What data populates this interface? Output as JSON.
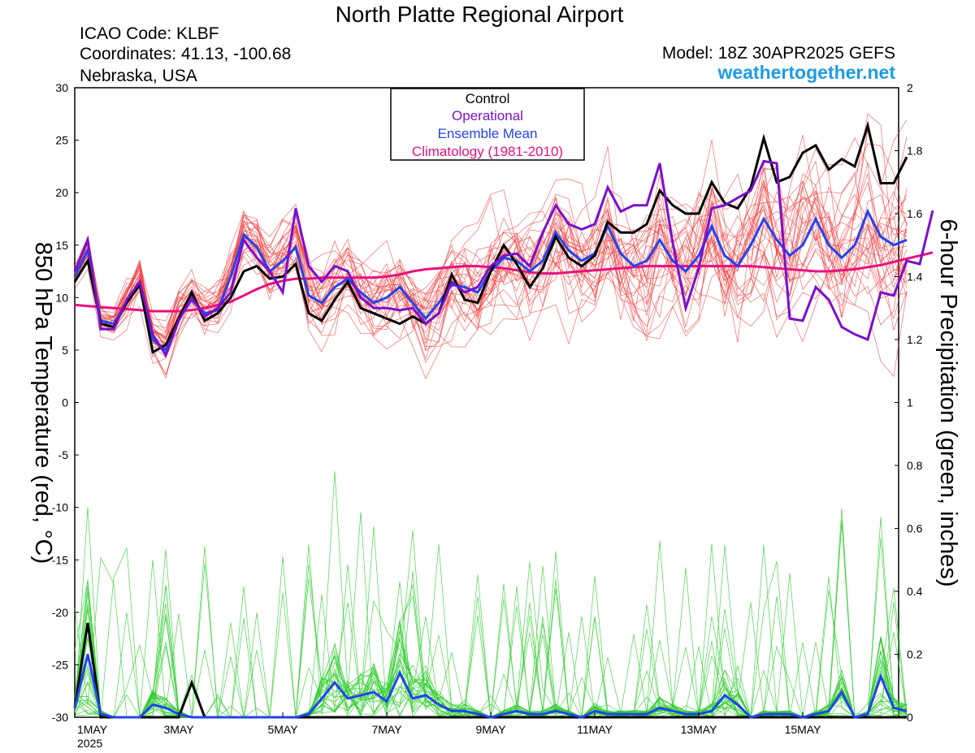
{
  "header": {
    "title": "North Platte Regional Airport",
    "icao": "ICAO Code: KLBF",
    "coordinates": "Coordinates: 41.13, -100.68",
    "region": "Nebraska, USA",
    "model": "Model: 18Z 30APR2025 GEFS",
    "brand": "weathertogether.net"
  },
  "colors": {
    "member_temp": "#f03c3c",
    "member_precip": "#2ecc2e",
    "control": "#000000",
    "operational": "#7a10cc",
    "mean": "#2244ee",
    "climatology": "#e8107f"
  },
  "chart_data": {
    "type": "line",
    "x_unit": "days since 1MAY 2025 00Z",
    "x_ticks": [
      {
        "x": 0,
        "label": "1MAY",
        "sub": "2025"
      },
      {
        "x": 2,
        "label": "3MAY"
      },
      {
        "x": 4,
        "label": "5MAY"
      },
      {
        "x": 6,
        "label": "7MAY"
      },
      {
        "x": 8,
        "label": "9MAY"
      },
      {
        "x": 10,
        "label": "11MAY"
      },
      {
        "x": 12,
        "label": "13MAY"
      },
      {
        "x": 14,
        "label": "15MAY"
      }
    ],
    "xlim": [
      0,
      15.75
    ],
    "y_left": {
      "label": "850 hPa Temperature (red, °C)",
      "ylim": [
        -30,
        30
      ],
      "ticks": [
        30,
        25,
        20,
        15,
        10,
        5,
        0,
        -5,
        -10,
        -15,
        -20,
        -25,
        -30
      ]
    },
    "y_right": {
      "label": "6-hour Precipitation (green, inches)",
      "ylim": [
        0,
        2
      ],
      "ticks": [
        "2",
        "1.8",
        "1.6",
        "1.4",
        "1.2",
        "1",
        "0.8",
        "0.6",
        "0.4",
        "0.2",
        "0"
      ]
    },
    "legend": {
      "position": "top-center",
      "entries": [
        {
          "name": "Control",
          "color": "#000000"
        },
        {
          "name": "Operational",
          "color": "#7a10cc"
        },
        {
          "name": "Ensemble Mean",
          "color": "#2244ee"
        },
        {
          "name": "Climatology (1981-2010)",
          "color": "#e8107f"
        }
      ]
    },
    "step_days": 0.25,
    "temperature": {
      "control": [
        11.5,
        13.5,
        7.5,
        7.2,
        9.5,
        11.2,
        4.8,
        5.5,
        8,
        10.5,
        7.8,
        8.5,
        10,
        12.5,
        13,
        11.8,
        12,
        13.2,
        8.5,
        7.8,
        9.8,
        11.5,
        9,
        8.5,
        8,
        7.5,
        8.2,
        7.5,
        8.5,
        12.2,
        9.8,
        9.5,
        12.5,
        15,
        13.2,
        11,
        12.8,
        15.8,
        13.8,
        13,
        14,
        17.2,
        16.2,
        16.2,
        17,
        20.2,
        18.8,
        18,
        18,
        21,
        19,
        18.5,
        20.5,
        25.2,
        21,
        21.5,
        23.8,
        24.5,
        22.2,
        23.2,
        22.5,
        26.4,
        20.9,
        20.9,
        23.4
      ],
      "operational": [
        12.5,
        15.5,
        7,
        7,
        9.8,
        11.5,
        6.5,
        4.5,
        7.8,
        10,
        8.2,
        9,
        10.5,
        15.5,
        13.8,
        12.5,
        10.5,
        18.5,
        13,
        11.5,
        13,
        12.5,
        10,
        9,
        9,
        8.8,
        9,
        7.5,
        8.5,
        11.5,
        10.5,
        11,
        13,
        14,
        14.2,
        13,
        16.2,
        18.8,
        17,
        16.5,
        17,
        20.5,
        18.2,
        18.8,
        18.8,
        22.8,
        15.2,
        9,
        12.8,
        18.5,
        18.8,
        19.5,
        20.2,
        23,
        22.8,
        8,
        7.8,
        11,
        9.8,
        7.2,
        6.5,
        6,
        10.5,
        10.2,
        13.5,
        13.2,
        18.3
      ],
      "mean": [
        12,
        14.5,
        7.8,
        7.5,
        9.5,
        11.5,
        6,
        5,
        8,
        9.8,
        8.5,
        8.8,
        12,
        16,
        14.8,
        12.5,
        13.5,
        14.8,
        10.2,
        9.5,
        11,
        11.8,
        10.5,
        9.5,
        10,
        11,
        9.5,
        8,
        9.5,
        11.2,
        11,
        10.5,
        12.5,
        13.8,
        13.5,
        12.5,
        13.5,
        16.2,
        14.5,
        13.5,
        14.2,
        16.8,
        14.2,
        13,
        13.5,
        15.5,
        13.5,
        12.5,
        14,
        16.8,
        14,
        13,
        15,
        17.5,
        15.5,
        14,
        15,
        17.5,
        15,
        13.8,
        15,
        18.2,
        15.8,
        15,
        15.5
      ],
      "climatology": [
        9.3,
        9.2,
        9.1,
        9,
        8.9,
        8.8,
        8.7,
        8.7,
        8.7,
        8.8,
        9,
        9.3,
        9.6,
        10.2,
        10.8,
        11.3,
        11.6,
        11.8,
        11.8,
        11.9,
        11.9,
        11.9,
        11.9,
        11.9,
        12,
        12.2,
        12.5,
        12.7,
        12.8,
        12.9,
        13,
        13,
        12.9,
        12.8,
        12.6,
        12.4,
        12.3,
        12.3,
        12.4,
        12.5,
        12.6,
        12.7,
        12.8,
        12.9,
        13,
        13,
        13,
        13,
        13,
        13,
        13,
        13,
        13,
        12.9,
        12.8,
        12.7,
        12.6,
        12.5,
        12.5,
        12.6,
        12.7,
        12.9,
        13.1,
        13.4,
        13.7,
        14,
        14.3
      ]
    },
    "precipitation": {
      "control": [
        0.03,
        0.3,
        0,
        0,
        0,
        0,
        0,
        0,
        0,
        0.11,
        0,
        0,
        0,
        0,
        0,
        0,
        0,
        0,
        0,
        0,
        0,
        0,
        0,
        0,
        0,
        0,
        0,
        0,
        0,
        0,
        0,
        0,
        0,
        0,
        0,
        0,
        0,
        0,
        0,
        0,
        0,
        0,
        0,
        0,
        0,
        0,
        0,
        0,
        0,
        0,
        0,
        0,
        0,
        0,
        0,
        0,
        0,
        0,
        0,
        0,
        0,
        0,
        0,
        0,
        0
      ],
      "mean": [
        0.03,
        0.2,
        0.01,
        0,
        0,
        0,
        0.04,
        0.03,
        0.01,
        0,
        0,
        0,
        0,
        0,
        0,
        0,
        0,
        0,
        0.01,
        0.06,
        0.11,
        0.06,
        0.07,
        0.08,
        0.05,
        0.14,
        0.06,
        0.07,
        0.04,
        0.02,
        0.02,
        0.01,
        0,
        0.01,
        0.02,
        0.01,
        0.01,
        0.02,
        0.01,
        0,
        0.02,
        0.01,
        0.01,
        0.01,
        0.01,
        0.03,
        0.02,
        0.01,
        0.01,
        0.02,
        0.07,
        0.04,
        0,
        0.01,
        0.01,
        0.01,
        0,
        0.01,
        0.02,
        0.08,
        0,
        0.01,
        0.13,
        0.03,
        0.02
      ]
    }
  }
}
